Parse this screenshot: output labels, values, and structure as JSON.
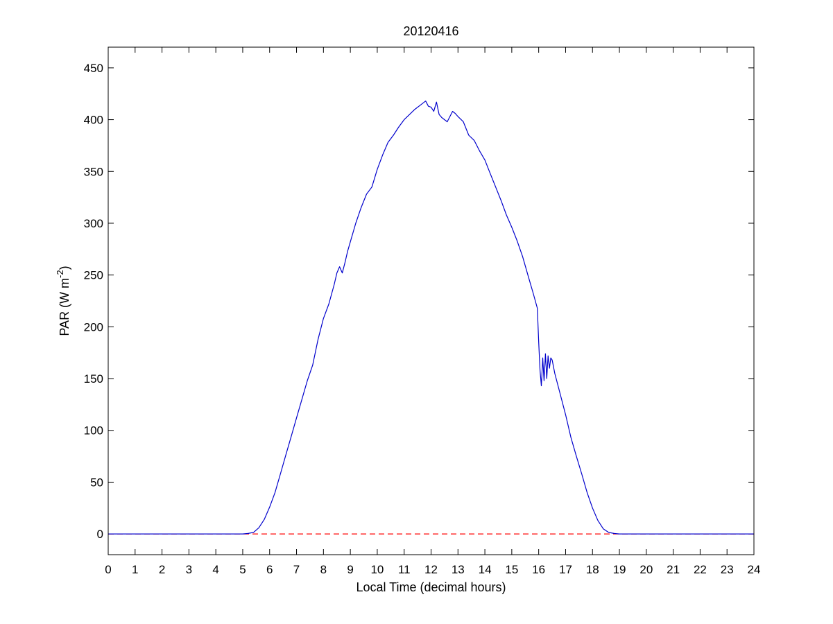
{
  "chart_data": {
    "type": "line",
    "title": "20120416",
    "xlabel": "Local Time (decimal hours)",
    "ylabel": {
      "prefix": "PAR (W m",
      "superscript": "-2",
      "suffix": ")"
    },
    "xlim": [
      0,
      24
    ],
    "ylim": [
      -20,
      470
    ],
    "xticks": [
      0,
      1,
      2,
      3,
      4,
      5,
      6,
      7,
      8,
      9,
      10,
      11,
      12,
      13,
      14,
      15,
      16,
      17,
      18,
      19,
      20,
      21,
      22,
      23,
      24
    ],
    "yticks": [
      0,
      50,
      100,
      150,
      200,
      250,
      300,
      350,
      400,
      450
    ],
    "grid": false,
    "box": true,
    "series": [
      {
        "style": "solid",
        "color": "#0000cc",
        "x": [
          0,
          5.0,
          5.2,
          5.4,
          5.6,
          5.8,
          6.0,
          6.2,
          6.4,
          6.6,
          6.8,
          7.0,
          7.2,
          7.4,
          7.6,
          7.8,
          8.0,
          8.2,
          8.4,
          8.5,
          8.6,
          8.7,
          8.8,
          8.9,
          9.0,
          9.2,
          9.4,
          9.6,
          9.8,
          10.0,
          10.2,
          10.4,
          10.6,
          10.8,
          11.0,
          11.2,
          11.4,
          11.6,
          11.8,
          11.9,
          12.0,
          12.1,
          12.2,
          12.3,
          12.4,
          12.6,
          12.8,
          12.9,
          13.0,
          13.2,
          13.4,
          13.6,
          13.8,
          14.0,
          14.2,
          14.4,
          14.6,
          14.8,
          15.0,
          15.2,
          15.4,
          15.6,
          15.8,
          15.95,
          16.0,
          16.05,
          16.1,
          16.15,
          16.2,
          16.25,
          16.3,
          16.35,
          16.4,
          16.45,
          16.5,
          16.6,
          16.8,
          17.0,
          17.2,
          17.4,
          17.6,
          17.8,
          18.0,
          18.2,
          18.4,
          18.6,
          18.8,
          19.0,
          19.2,
          19.4,
          20.0,
          24.0
        ],
        "y": [
          0,
          0,
          0.5,
          1.5,
          6,
          14,
          26,
          40,
          58,
          76,
          94,
          112,
          130,
          148,
          163,
          188,
          208,
          222,
          241,
          252,
          258,
          252,
          262,
          273,
          282,
          300,
          315,
          328,
          335,
          352,
          366,
          378,
          385,
          393,
          400,
          405,
          410,
          414,
          418,
          413,
          412,
          408,
          417,
          405,
          402,
          398,
          408,
          406,
          403,
          398,
          385,
          380,
          370,
          361,
          348,
          335,
          322,
          308,
          296,
          283,
          268,
          250,
          232,
          218,
          185,
          158,
          143,
          170,
          148,
          174,
          150,
          172,
          160,
          170,
          168,
          155,
          135,
          115,
          93,
          75,
          58,
          40,
          25,
          13,
          5,
          1.5,
          0.5,
          0,
          0,
          0,
          0,
          0
        ]
      },
      {
        "style": "dashed",
        "color": "#ff0000",
        "x": [
          0,
          24
        ],
        "y": [
          0,
          0
        ]
      }
    ]
  }
}
